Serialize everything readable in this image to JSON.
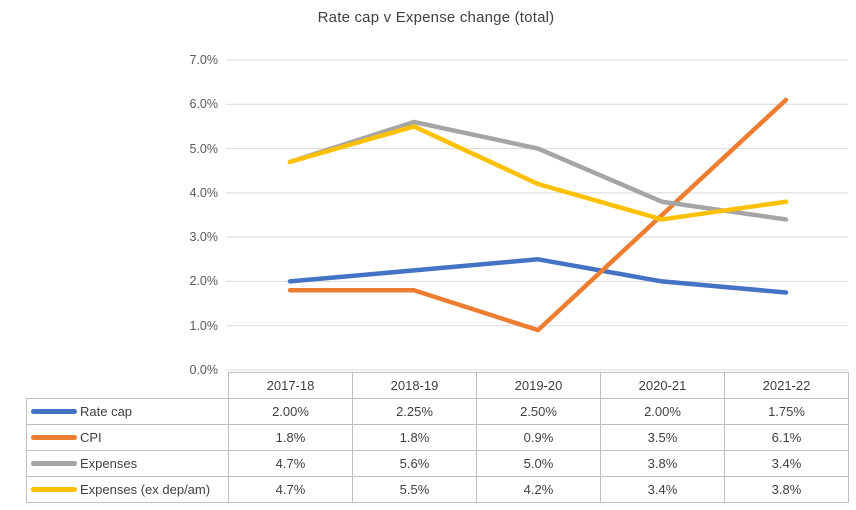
{
  "chart_data": {
    "type": "line",
    "title": "Rate cap v Expense change (total)",
    "categories": [
      "2017-18",
      "2018-19",
      "2019-20",
      "2020-21",
      "2021-22"
    ],
    "series": [
      {
        "name": "Rate cap",
        "color": "#4472C4",
        "values": [
          2.0,
          2.25,
          2.5,
          2.0,
          1.75
        ],
        "labels": [
          "2.00%",
          "2.25%",
          "2.50%",
          "2.00%",
          "1.75%"
        ]
      },
      {
        "name": "CPI",
        "color": "#ED7D31",
        "values": [
          1.8,
          1.8,
          0.9,
          3.5,
          6.1
        ],
        "labels": [
          "1.8%",
          "1.8%",
          "0.9%",
          "3.5%",
          "6.1%"
        ]
      },
      {
        "name": "Expenses",
        "color": "#A5A5A5",
        "values": [
          4.7,
          5.6,
          5.0,
          3.8,
          3.4
        ],
        "labels": [
          "4.7%",
          "5.6%",
          "5.0%",
          "3.8%",
          "3.4%"
        ]
      },
      {
        "name": "Expenses (ex dep/am)",
        "color": "#FFC000",
        "values": [
          4.7,
          5.5,
          4.2,
          3.4,
          3.8
        ],
        "labels": [
          "4.7%",
          "5.5%",
          "4.2%",
          "3.4%",
          "3.8%"
        ]
      }
    ],
    "y_axis": {
      "min": 0,
      "max": 7,
      "step": 1,
      "tick_labels": [
        "0.0%",
        "1.0%",
        "2.0%",
        "3.0%",
        "4.0%",
        "5.0%",
        "6.0%",
        "7.0%"
      ]
    },
    "xlabel": "",
    "ylabel": "",
    "grid": true,
    "legend_position": "data-table-left",
    "data_table_shown": true
  },
  "colors": {
    "gridline": "#D9D9D9",
    "table_border": "#BFBFBF",
    "title_text": "#404040",
    "tick_text": "#595959",
    "table_text": "#404040"
  }
}
